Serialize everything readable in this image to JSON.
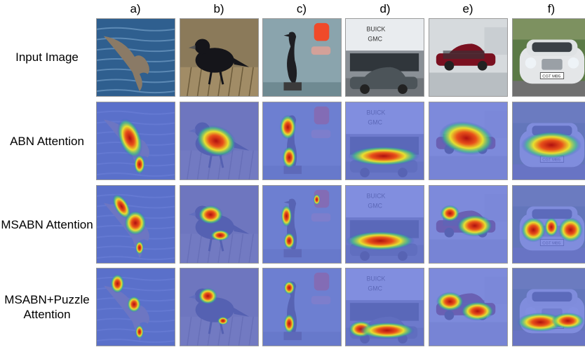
{
  "columns": [
    "a)",
    "b)",
    "c)",
    "d)",
    "e)",
    "f)"
  ],
  "rows": [
    {
      "label": "Input Image",
      "kind": "input"
    },
    {
      "label": "ABN Attention",
      "kind": "abn"
    },
    {
      "label": "MSABN Attention",
      "kind": "msabn"
    },
    {
      "label": "MSABN+Puzzle Attention",
      "label_line1": "MSABN+Puzzle",
      "label_line2": "Attention",
      "kind": "puzzle"
    }
  ],
  "images": [
    {
      "column": "a)",
      "subject": "bird in flight over water",
      "icon": "bird-icon"
    },
    {
      "column": "b)",
      "subject": "black bird on dry grass",
      "icon": "bird-icon"
    },
    {
      "column": "c)",
      "subject": "cormorant on post",
      "icon": "bird-icon"
    },
    {
      "column": "d)",
      "subject": "sedan in front of dealership",
      "icon": "car-icon",
      "signs": [
        "BUICK",
        "GMC"
      ]
    },
    {
      "column": "e)",
      "subject": "red crossover in showroom",
      "icon": "car-icon"
    },
    {
      "column": "f)",
      "subject": "white luxury car",
      "icon": "car-icon",
      "plate": "CGT MB5"
    }
  ],
  "colors": {
    "heat_low": "#3c4fd0",
    "heat_mid": "#e8e030",
    "heat_high": "#b01010"
  }
}
